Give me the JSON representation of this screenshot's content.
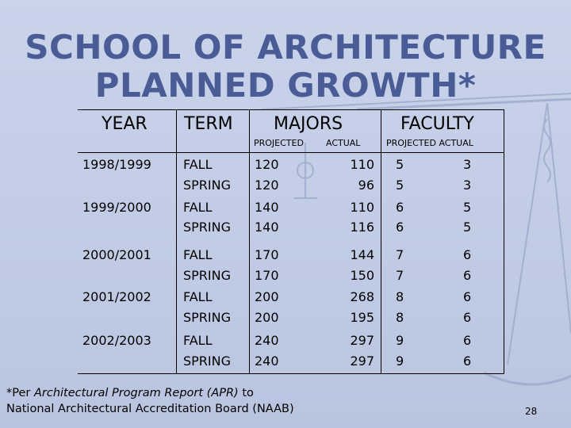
{
  "title": {
    "line1": "SCHOOL OF ARCHITECTURE",
    "line2": "PLANNED GROWTH*"
  },
  "headers": {
    "year": "YEAR",
    "term": "TERM",
    "majors": "MAJORS",
    "faculty": "FACULTY"
  },
  "subheaders": {
    "majors_projected": "PROJECTED",
    "majors_actual": "ACTUAL",
    "faculty_both": "PROJECTED ACTUAL"
  },
  "rows": [
    {
      "year": "1998/1999",
      "terms": [
        "FALL",
        "SPRING"
      ],
      "majors_projected": [
        "120",
        "120"
      ],
      "majors_actual": [
        "110",
        "96"
      ],
      "faculty_projected": [
        "5",
        "5"
      ],
      "faculty_actual": [
        "3",
        "3"
      ]
    },
    {
      "year": "1999/2000",
      "terms": [
        "FALL",
        "SPRING"
      ],
      "majors_projected": [
        "140",
        "140"
      ],
      "majors_actual": [
        "110",
        "116"
      ],
      "faculty_projected": [
        "6",
        "6"
      ],
      "faculty_actual": [
        "5",
        "5"
      ]
    },
    {
      "year": "2000/2001",
      "terms": [
        "FALL",
        "SPRING"
      ],
      "majors_projected": [
        "170",
        "170"
      ],
      "majors_actual": [
        "144",
        "150"
      ],
      "faculty_projected": [
        "7",
        "7"
      ],
      "faculty_actual": [
        "6",
        "6"
      ]
    },
    {
      "year": "2001/2002",
      "terms": [
        "FALL",
        "SPRING"
      ],
      "majors_projected": [
        "200",
        "200"
      ],
      "majors_actual": [
        "268",
        "195"
      ],
      "faculty_projected": [
        "8",
        "8"
      ],
      "faculty_actual": [
        "6",
        "6"
      ]
    },
    {
      "year": "2002/2003",
      "terms": [
        "FALL",
        "SPRING"
      ],
      "majors_projected": [
        "240",
        "240"
      ],
      "majors_actual": [
        "297",
        "297"
      ],
      "faculty_projected": [
        "9",
        "9"
      ],
      "faculty_actual": [
        "6",
        "6"
      ]
    }
  ],
  "footnote": {
    "prefix": "*Per ",
    "report": "Architectural Program Report  (APR)",
    "suffix": " to",
    "line2": "National Architectural Accreditation Board (NAAB)"
  },
  "page_number": "28",
  "colors": {
    "title": "#4a5c96",
    "background": "#c3cde6"
  }
}
